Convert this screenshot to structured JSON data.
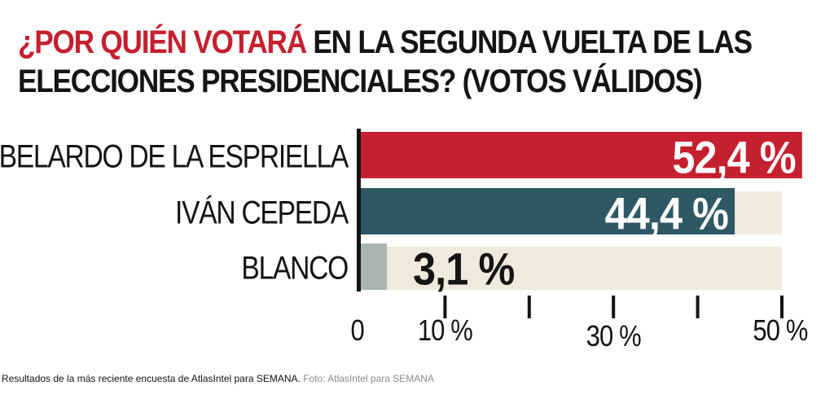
{
  "title": {
    "highlight": "¿POR QUIÉN VOTARÁ",
    "rest_line1": " EN LA SEGUNDA VUELTA DE LAS",
    "line2": "ELECCIONES PRESIDENCIALES?  (VOTOS VÁLIDOS)"
  },
  "caption": {
    "text": "Resultados de la más reciente encuesta de AtlasIntel para SEMANA.",
    "credit": " Foto: AtlasIntel para SEMANA"
  },
  "colors": {
    "accent": "#c5202f",
    "teal": "#2d5864",
    "gray": "#a9b5b3",
    "track": "#efeadc",
    "ink": "#141414"
  },
  "chart_data": {
    "type": "bar",
    "orientation": "horizontal",
    "categories": [
      "ABELARDO DE LA ESPRIELLA",
      "IVÁN CEPEDA",
      "BLANCO"
    ],
    "values": [
      52.4,
      44.4,
      3.1
    ],
    "value_labels": [
      "52,4 %",
      "44,4 %",
      "3,1 %"
    ],
    "bar_colors": [
      "#c5202f",
      "#2d5864",
      "#a9b5b3"
    ],
    "xlim": [
      0,
      52.4
    ],
    "track_max": 50,
    "xticks": [
      {
        "value": 0,
        "label": "0"
      },
      {
        "value": 10,
        "label": "10 %"
      },
      {
        "value": 20,
        "label": ""
      },
      {
        "value": 30,
        "label": "30 %"
      },
      {
        "value": 40,
        "label": ""
      },
      {
        "value": 50,
        "label": "50 %"
      }
    ],
    "grid": false,
    "legend": "none"
  }
}
